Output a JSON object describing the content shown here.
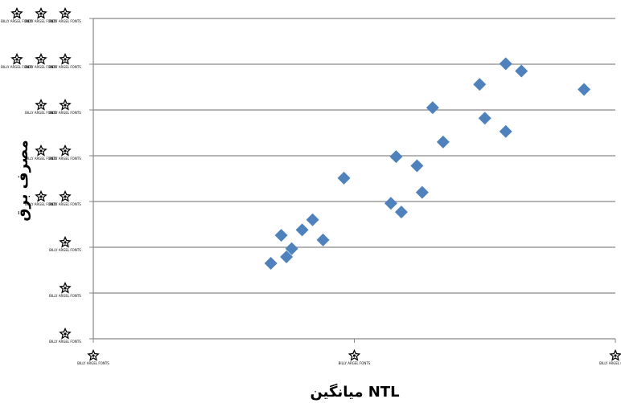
{
  "colors": {
    "marker": "#4F81BD",
    "gridline": "#868686",
    "axis": "#868686",
    "tick_glyph": "#000000"
  },
  "chart_data": {
    "type": "scatter",
    "title": "",
    "xlabel": "میانگین NTL",
    "ylabel": "مصرف برق",
    "xlim": [
      0,
      1
    ],
    "ylim": [
      0,
      7
    ],
    "x_ticks": [
      0,
      0.5,
      1
    ],
    "y_ticks": [
      0,
      1,
      2,
      3,
      4,
      5,
      6,
      7
    ],
    "tick_glyph_text": "BILLY ARGEL FONTS",
    "tick_glyph_icon": "star-glyph-icon",
    "grid": true,
    "legend": "none",
    "series": [
      {
        "marker": "diamond",
        "points": [
          {
            "x": 0.34,
            "y": 1.65
          },
          {
            "x": 0.36,
            "y": 2.26
          },
          {
            "x": 0.37,
            "y": 1.79
          },
          {
            "x": 0.38,
            "y": 1.97
          },
          {
            "x": 0.4,
            "y": 2.38
          },
          {
            "x": 0.42,
            "y": 2.6
          },
          {
            "x": 0.44,
            "y": 2.16
          },
          {
            "x": 0.48,
            "y": 3.51
          },
          {
            "x": 0.57,
            "y": 2.96
          },
          {
            "x": 0.58,
            "y": 3.98
          },
          {
            "x": 0.59,
            "y": 2.77
          },
          {
            "x": 0.62,
            "y": 3.78
          },
          {
            "x": 0.63,
            "y": 3.2
          },
          {
            "x": 0.65,
            "y": 5.05
          },
          {
            "x": 0.67,
            "y": 4.3
          },
          {
            "x": 0.74,
            "y": 5.56
          },
          {
            "x": 0.75,
            "y": 4.82
          },
          {
            "x": 0.79,
            "y": 4.53
          },
          {
            "x": 0.79,
            "y": 6.01
          },
          {
            "x": 0.82,
            "y": 5.85
          },
          {
            "x": 0.94,
            "y": 5.45
          }
        ]
      }
    ]
  }
}
